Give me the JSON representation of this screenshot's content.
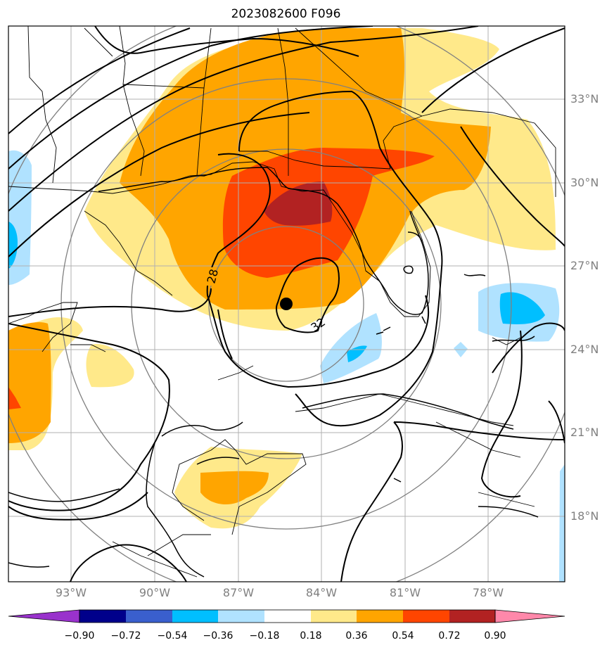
{
  "title": "2023082600 F096",
  "lat_labels": [
    "33°N",
    "30°N",
    "27°N",
    "24°N",
    "21°N",
    "18°N"
  ],
  "lon_labels": [
    "93°W",
    "90°W",
    "87°W",
    "84°W",
    "81°W",
    "78°W"
  ],
  "contour_labels": [
    "28",
    "32"
  ],
  "colorbar": {
    "ticks": [
      "−0.90",
      "−0.72",
      "−0.54",
      "−0.36",
      "−0.18",
      "0.18",
      "0.36",
      "0.54",
      "0.72",
      "0.90"
    ],
    "colors": [
      "#9932cc",
      "#00008b",
      "#3a5fcd",
      "#00bfff",
      "#b0e2ff",
      "#ffffff",
      "#ffe98a",
      "#ffa500",
      "#ff4500",
      "#b22222",
      "#ff88aa"
    ]
  },
  "colors": {
    "light_yellow": "#ffe98a",
    "orange": "#ffa500",
    "red_orange": "#ff4500",
    "dark_red": "#b22222",
    "light_blue": "#b0e2ff",
    "deep_sky_blue": "#00bfff",
    "range_ring": "#808080",
    "gridline": "#b0b0b0"
  },
  "storm_center_marker": "black-dot"
}
